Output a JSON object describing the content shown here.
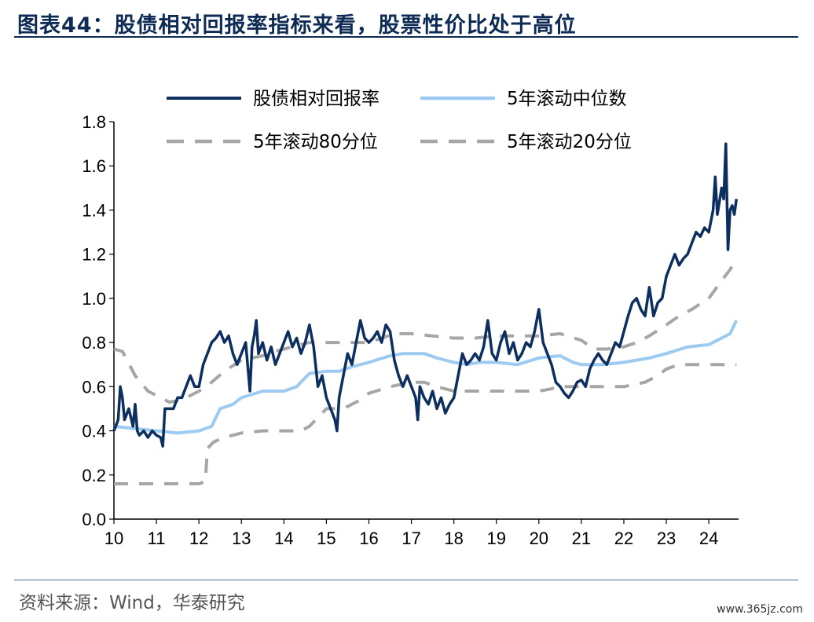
{
  "title": "图表44：股债相对回报率指标来看，股票性价比处于高位",
  "source": "资料来源：Wind，华泰研究",
  "watermark": "www.365jz.com",
  "colors": {
    "ratio": "#0c2f5f",
    "median": "#9ccaf0",
    "pct": "#a6a6a6",
    "title": "#0d2b54"
  },
  "chart_data": {
    "type": "line",
    "xlabel": "",
    "ylabel": "",
    "ylim": [
      0.0,
      1.8
    ],
    "yticks": [
      "0.0",
      "0.2",
      "0.4",
      "0.6",
      "0.8",
      "1.0",
      "1.2",
      "1.4",
      "1.6",
      "1.8"
    ],
    "xlim": [
      2010,
      2024.7
    ],
    "xticks": [
      "10",
      "11",
      "12",
      "13",
      "14",
      "15",
      "16",
      "17",
      "18",
      "19",
      "20",
      "21",
      "22",
      "23",
      "24"
    ],
    "legend_position": "top",
    "series": [
      {
        "name": "股债相对回报率",
        "style": "solid",
        "points": [
          [
            2010.0,
            0.4
          ],
          [
            2010.1,
            0.45
          ],
          [
            2010.15,
            0.6
          ],
          [
            2010.2,
            0.55
          ],
          [
            2010.25,
            0.45
          ],
          [
            2010.35,
            0.5
          ],
          [
            2010.45,
            0.42
          ],
          [
            2010.5,
            0.52
          ],
          [
            2010.55,
            0.4
          ],
          [
            2010.6,
            0.38
          ],
          [
            2010.7,
            0.4
          ],
          [
            2010.8,
            0.37
          ],
          [
            2010.9,
            0.4
          ],
          [
            2011.0,
            0.38
          ],
          [
            2011.1,
            0.37
          ],
          [
            2011.15,
            0.33
          ],
          [
            2011.2,
            0.5
          ],
          [
            2011.3,
            0.5
          ],
          [
            2011.4,
            0.5
          ],
          [
            2011.5,
            0.55
          ],
          [
            2011.6,
            0.55
          ],
          [
            2011.7,
            0.6
          ],
          [
            2011.8,
            0.65
          ],
          [
            2011.9,
            0.6
          ],
          [
            2012.0,
            0.6
          ],
          [
            2012.1,
            0.7
          ],
          [
            2012.2,
            0.75
          ],
          [
            2012.3,
            0.8
          ],
          [
            2012.4,
            0.82
          ],
          [
            2012.5,
            0.85
          ],
          [
            2012.6,
            0.8
          ],
          [
            2012.7,
            0.83
          ],
          [
            2012.8,
            0.75
          ],
          [
            2012.9,
            0.7
          ],
          [
            2013.0,
            0.75
          ],
          [
            2013.1,
            0.8
          ],
          [
            2013.2,
            0.58
          ],
          [
            2013.25,
            0.78
          ],
          [
            2013.3,
            0.83
          ],
          [
            2013.35,
            0.9
          ],
          [
            2013.4,
            0.75
          ],
          [
            2013.5,
            0.8
          ],
          [
            2013.6,
            0.72
          ],
          [
            2013.7,
            0.78
          ],
          [
            2013.8,
            0.7
          ],
          [
            2013.9,
            0.75
          ],
          [
            2014.0,
            0.8
          ],
          [
            2014.1,
            0.85
          ],
          [
            2014.2,
            0.78
          ],
          [
            2014.3,
            0.82
          ],
          [
            2014.4,
            0.75
          ],
          [
            2014.5,
            0.8
          ],
          [
            2014.6,
            0.88
          ],
          [
            2014.7,
            0.78
          ],
          [
            2014.8,
            0.6
          ],
          [
            2014.9,
            0.65
          ],
          [
            2015.0,
            0.55
          ],
          [
            2015.1,
            0.5
          ],
          [
            2015.2,
            0.45
          ],
          [
            2015.25,
            0.4
          ],
          [
            2015.3,
            0.55
          ],
          [
            2015.4,
            0.65
          ],
          [
            2015.5,
            0.75
          ],
          [
            2015.6,
            0.7
          ],
          [
            2015.7,
            0.8
          ],
          [
            2015.8,
            0.9
          ],
          [
            2015.9,
            0.82
          ],
          [
            2016.0,
            0.8
          ],
          [
            2016.1,
            0.82
          ],
          [
            2016.2,
            0.85
          ],
          [
            2016.3,
            0.8
          ],
          [
            2016.4,
            0.88
          ],
          [
            2016.5,
            0.85
          ],
          [
            2016.6,
            0.72
          ],
          [
            2016.7,
            0.65
          ],
          [
            2016.8,
            0.6
          ],
          [
            2016.9,
            0.65
          ],
          [
            2017.0,
            0.6
          ],
          [
            2017.1,
            0.55
          ],
          [
            2017.15,
            0.45
          ],
          [
            2017.2,
            0.6
          ],
          [
            2017.3,
            0.55
          ],
          [
            2017.4,
            0.52
          ],
          [
            2017.5,
            0.58
          ],
          [
            2017.6,
            0.5
          ],
          [
            2017.7,
            0.55
          ],
          [
            2017.8,
            0.48
          ],
          [
            2017.9,
            0.52
          ],
          [
            2018.0,
            0.55
          ],
          [
            2018.1,
            0.65
          ],
          [
            2018.2,
            0.75
          ],
          [
            2018.3,
            0.7
          ],
          [
            2018.4,
            0.72
          ],
          [
            2018.5,
            0.75
          ],
          [
            2018.6,
            0.72
          ],
          [
            2018.7,
            0.78
          ],
          [
            2018.8,
            0.9
          ],
          [
            2018.9,
            0.75
          ],
          [
            2019.0,
            0.72
          ],
          [
            2019.1,
            0.8
          ],
          [
            2019.2,
            0.85
          ],
          [
            2019.3,
            0.75
          ],
          [
            2019.4,
            0.8
          ],
          [
            2019.5,
            0.72
          ],
          [
            2019.6,
            0.75
          ],
          [
            2019.7,
            0.8
          ],
          [
            2019.8,
            0.78
          ],
          [
            2019.9,
            0.85
          ],
          [
            2020.0,
            0.95
          ],
          [
            2020.1,
            0.8
          ],
          [
            2020.2,
            0.75
          ],
          [
            2020.3,
            0.7
          ],
          [
            2020.4,
            0.62
          ],
          [
            2020.5,
            0.6
          ],
          [
            2020.6,
            0.57
          ],
          [
            2020.7,
            0.55
          ],
          [
            2020.8,
            0.58
          ],
          [
            2020.9,
            0.62
          ],
          [
            2021.0,
            0.63
          ],
          [
            2021.1,
            0.6
          ],
          [
            2021.2,
            0.68
          ],
          [
            2021.3,
            0.72
          ],
          [
            2021.4,
            0.75
          ],
          [
            2021.5,
            0.72
          ],
          [
            2021.6,
            0.7
          ],
          [
            2021.7,
            0.75
          ],
          [
            2021.8,
            0.8
          ],
          [
            2021.9,
            0.78
          ],
          [
            2022.0,
            0.85
          ],
          [
            2022.1,
            0.92
          ],
          [
            2022.2,
            0.98
          ],
          [
            2022.3,
            1.0
          ],
          [
            2022.4,
            0.95
          ],
          [
            2022.5,
            0.92
          ],
          [
            2022.6,
            1.05
          ],
          [
            2022.7,
            0.92
          ],
          [
            2022.8,
            0.98
          ],
          [
            2022.9,
            1.0
          ],
          [
            2023.0,
            1.1
          ],
          [
            2023.1,
            1.15
          ],
          [
            2023.2,
            1.2
          ],
          [
            2023.3,
            1.15
          ],
          [
            2023.4,
            1.18
          ],
          [
            2023.5,
            1.2
          ],
          [
            2023.6,
            1.25
          ],
          [
            2023.7,
            1.3
          ],
          [
            2023.8,
            1.28
          ],
          [
            2023.9,
            1.32
          ],
          [
            2024.0,
            1.3
          ],
          [
            2024.1,
            1.4
          ],
          [
            2024.15,
            1.55
          ],
          [
            2024.2,
            1.38
          ],
          [
            2024.3,
            1.5
          ],
          [
            2024.35,
            1.45
          ],
          [
            2024.4,
            1.7
          ],
          [
            2024.45,
            1.22
          ],
          [
            2024.5,
            1.4
          ],
          [
            2024.55,
            1.42
          ],
          [
            2024.6,
            1.38
          ],
          [
            2024.65,
            1.45
          ]
        ]
      },
      {
        "name": "5年滚动中位数",
        "style": "solid",
        "points": [
          [
            2010.0,
            0.42
          ],
          [
            2010.5,
            0.41
          ],
          [
            2011.0,
            0.4
          ],
          [
            2011.5,
            0.39
          ],
          [
            2012.0,
            0.4
          ],
          [
            2012.3,
            0.42
          ],
          [
            2012.5,
            0.5
          ],
          [
            2012.8,
            0.52
          ],
          [
            2013.0,
            0.55
          ],
          [
            2013.5,
            0.58
          ],
          [
            2014.0,
            0.58
          ],
          [
            2014.3,
            0.6
          ],
          [
            2014.6,
            0.66
          ],
          [
            2015.0,
            0.67
          ],
          [
            2015.3,
            0.67
          ],
          [
            2015.6,
            0.69
          ],
          [
            2016.0,
            0.71
          ],
          [
            2016.5,
            0.74
          ],
          [
            2016.8,
            0.75
          ],
          [
            2017.0,
            0.75
          ],
          [
            2017.3,
            0.75
          ],
          [
            2017.6,
            0.73
          ],
          [
            2018.0,
            0.71
          ],
          [
            2018.3,
            0.7
          ],
          [
            2018.6,
            0.71
          ],
          [
            2019.0,
            0.71
          ],
          [
            2019.5,
            0.7
          ],
          [
            2020.0,
            0.73
          ],
          [
            2020.5,
            0.74
          ],
          [
            2020.8,
            0.71
          ],
          [
            2021.0,
            0.7
          ],
          [
            2021.5,
            0.7
          ],
          [
            2022.0,
            0.71
          ],
          [
            2022.3,
            0.72
          ],
          [
            2022.6,
            0.73
          ],
          [
            2023.0,
            0.75
          ],
          [
            2023.5,
            0.78
          ],
          [
            2024.0,
            0.79
          ],
          [
            2024.3,
            0.82
          ],
          [
            2024.5,
            0.84
          ],
          [
            2024.65,
            0.9
          ]
        ]
      },
      {
        "name": "5年滚动80分位",
        "style": "dashed",
        "points": [
          [
            2010.0,
            0.77
          ],
          [
            2010.2,
            0.76
          ],
          [
            2010.5,
            0.65
          ],
          [
            2010.8,
            0.58
          ],
          [
            2011.0,
            0.56
          ],
          [
            2011.3,
            0.53
          ],
          [
            2011.6,
            0.54
          ],
          [
            2012.0,
            0.58
          ],
          [
            2012.3,
            0.62
          ],
          [
            2012.6,
            0.67
          ],
          [
            2013.0,
            0.72
          ],
          [
            2013.5,
            0.74
          ],
          [
            2013.8,
            0.76
          ],
          [
            2014.2,
            0.78
          ],
          [
            2014.6,
            0.8
          ],
          [
            2015.0,
            0.8
          ],
          [
            2015.5,
            0.8
          ],
          [
            2015.8,
            0.8
          ],
          [
            2016.0,
            0.8
          ],
          [
            2016.3,
            0.82
          ],
          [
            2016.6,
            0.84
          ],
          [
            2017.0,
            0.84
          ],
          [
            2017.5,
            0.83
          ],
          [
            2018.0,
            0.82
          ],
          [
            2018.5,
            0.82
          ],
          [
            2019.0,
            0.83
          ],
          [
            2019.5,
            0.83
          ],
          [
            2020.0,
            0.83
          ],
          [
            2020.5,
            0.84
          ],
          [
            2021.0,
            0.81
          ],
          [
            2021.3,
            0.77
          ],
          [
            2021.6,
            0.77
          ],
          [
            2022.0,
            0.78
          ],
          [
            2022.3,
            0.8
          ],
          [
            2022.6,
            0.83
          ],
          [
            2023.0,
            0.88
          ],
          [
            2023.3,
            0.92
          ],
          [
            2023.6,
            0.95
          ],
          [
            2024.0,
            1.0
          ],
          [
            2024.3,
            1.08
          ],
          [
            2024.5,
            1.13
          ],
          [
            2024.65,
            1.18
          ]
        ]
      },
      {
        "name": "5年滚动20分位",
        "style": "dashed",
        "points": [
          [
            2010.0,
            0.16
          ],
          [
            2010.5,
            0.16
          ],
          [
            2011.0,
            0.16
          ],
          [
            2011.5,
            0.16
          ],
          [
            2012.0,
            0.16
          ],
          [
            2012.15,
            0.17
          ],
          [
            2012.2,
            0.32
          ],
          [
            2012.35,
            0.35
          ],
          [
            2012.6,
            0.37
          ],
          [
            2013.0,
            0.39
          ],
          [
            2013.5,
            0.4
          ],
          [
            2014.0,
            0.4
          ],
          [
            2014.4,
            0.4
          ],
          [
            2014.6,
            0.42
          ],
          [
            2014.8,
            0.46
          ],
          [
            2015.0,
            0.5
          ],
          [
            2015.3,
            0.5
          ],
          [
            2015.5,
            0.51
          ],
          [
            2015.8,
            0.54
          ],
          [
            2016.0,
            0.57
          ],
          [
            2016.5,
            0.6
          ],
          [
            2017.0,
            0.62
          ],
          [
            2017.3,
            0.62
          ],
          [
            2017.6,
            0.6
          ],
          [
            2018.0,
            0.58
          ],
          [
            2018.5,
            0.58
          ],
          [
            2019.0,
            0.58
          ],
          [
            2019.5,
            0.58
          ],
          [
            2020.0,
            0.58
          ],
          [
            2020.3,
            0.59
          ],
          [
            2020.4,
            0.6
          ],
          [
            2021.0,
            0.6
          ],
          [
            2021.5,
            0.6
          ],
          [
            2022.0,
            0.6
          ],
          [
            2022.5,
            0.62
          ],
          [
            2022.8,
            0.65
          ],
          [
            2023.0,
            0.68
          ],
          [
            2023.3,
            0.7
          ],
          [
            2024.0,
            0.7
          ],
          [
            2024.65,
            0.7
          ]
        ]
      }
    ]
  }
}
